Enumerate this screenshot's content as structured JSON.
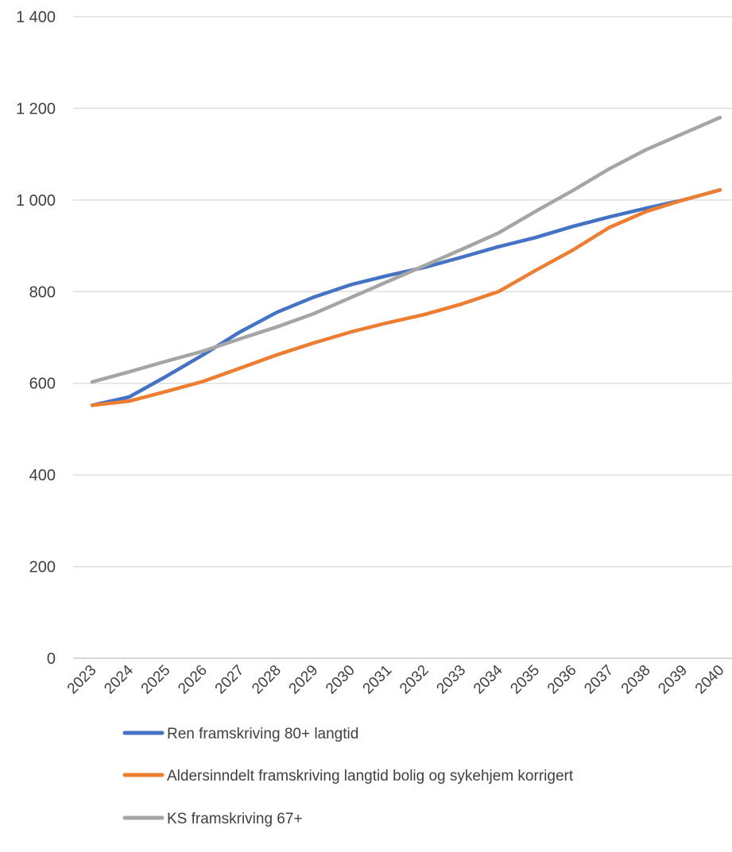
{
  "chart_data": {
    "type": "line",
    "title": "",
    "xlabel": "",
    "ylabel": "",
    "ylim": [
      0,
      1400
    ],
    "yticks": [
      0,
      200,
      400,
      600,
      800,
      1000,
      1200,
      1400
    ],
    "ytick_labels": [
      "0",
      "200",
      "400",
      "600",
      "800",
      "1 000",
      "1 200",
      "1 400"
    ],
    "grid": "horizontal",
    "legend_position": "bottom",
    "categories": [
      "2023",
      "2024",
      "2025",
      "2026",
      "2027",
      "2028",
      "2029",
      "2030",
      "2031",
      "2032",
      "2033",
      "2034",
      "2035",
      "2036",
      "2037",
      "2038",
      "2039",
      "2040"
    ],
    "series": [
      {
        "name": "Ren framskriving 80+ langtid",
        "color": "#4472C4",
        "values": [
          552,
          570,
          615,
          662,
          712,
          755,
          788,
          815,
          835,
          853,
          875,
          898,
          918,
          942,
          963,
          982,
          1000,
          1022
        ]
      },
      {
        "name": "Aldersinndelt framskriving langtid bolig og sykehjem korrigert",
        "color": "#ED7D31",
        "values": [
          552,
          561,
          582,
          604,
          633,
          662,
          688,
          712,
          732,
          750,
          773,
          800,
          846,
          890,
          940,
          975,
          1000,
          1022
        ]
      },
      {
        "name": "KS framskriving 67+",
        "color": "#A5A5A5",
        "values": [
          603,
          625,
          648,
          670,
          697,
          723,
          752,
          787,
          822,
          857,
          892,
          928,
          975,
          1020,
          1068,
          1110,
          1145,
          1180
        ]
      }
    ]
  }
}
